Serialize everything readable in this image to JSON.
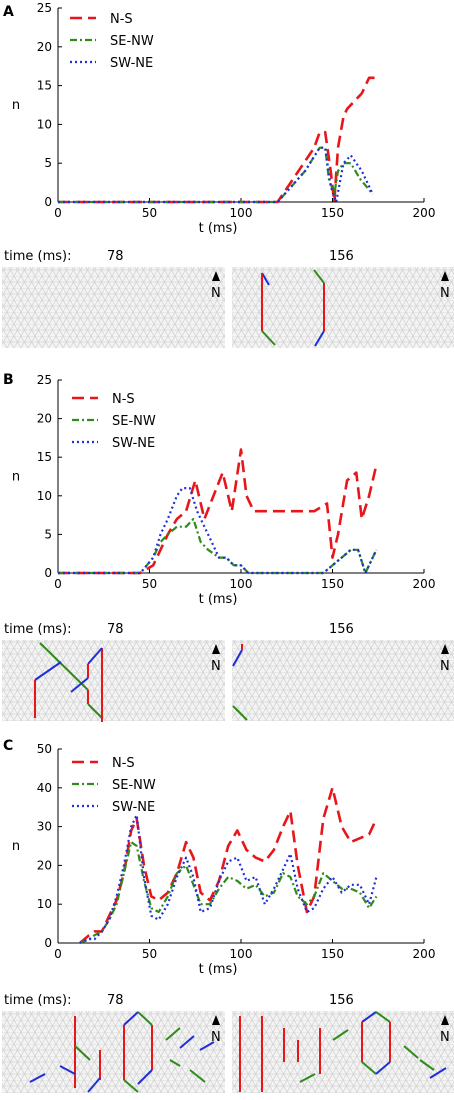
{
  "colors": {
    "ns": "#e8161b",
    "senw": "#2f8b1a",
    "swne": "#1f2fd8",
    "lattice": "#dadada",
    "lattice_bg": "#f2f2f2"
  },
  "legend": {
    "ns": "N-S",
    "senw": "SE-NW",
    "swne": "SW-NE"
  },
  "snapshot_labels": {
    "time": "time (ms):",
    "t1": "78",
    "t2": "156",
    "north": "N"
  },
  "chart_data": [
    {
      "panel": "A",
      "type": "line",
      "xlabel": "t (ms)",
      "ylabel": "n",
      "xlim": [
        0,
        200
      ],
      "ylim": [
        0,
        25
      ],
      "xticks": [
        0,
        50,
        100,
        150,
        200
      ],
      "yticks": [
        0,
        5,
        10,
        15,
        20,
        25
      ],
      "series": [
        {
          "name": "N-S",
          "x": [
            0,
            120,
            140,
            143,
            146,
            149,
            151,
            153,
            156,
            158,
            162,
            166,
            170,
            173
          ],
          "y": [
            0,
            0,
            7,
            9,
            9,
            4,
            0,
            7,
            11,
            12,
            13,
            14,
            16,
            16
          ]
        },
        {
          "name": "SE-NW",
          "x": [
            0,
            120,
            135,
            143,
            146,
            148,
            151,
            153,
            156,
            160,
            165,
            172
          ],
          "y": [
            0,
            0,
            4,
            7,
            7,
            3,
            1,
            4,
            5,
            5,
            3,
            1
          ]
        },
        {
          "name": "SW-NE",
          "x": [
            0,
            120,
            135,
            143,
            146,
            149,
            152,
            156,
            160,
            166,
            172
          ],
          "y": [
            0,
            0,
            4,
            7,
            7,
            2,
            0,
            5,
            6,
            4,
            1
          ]
        }
      ]
    },
    {
      "panel": "B",
      "type": "line",
      "xlabel": "t (ms)",
      "ylabel": "n",
      "xlim": [
        0,
        200
      ],
      "ylim": [
        0,
        25
      ],
      "xticks": [
        0,
        50,
        100,
        150,
        200
      ],
      "yticks": [
        0,
        5,
        10,
        15,
        20,
        25
      ],
      "series": [
        {
          "name": "N-S",
          "x": [
            0,
            45,
            52,
            56,
            60,
            65,
            70,
            75,
            80,
            85,
            90,
            95,
            100,
            103,
            107,
            110,
            120,
            130,
            140,
            147,
            150,
            153,
            158,
            163,
            166,
            170,
            174
          ],
          "y": [
            0,
            0,
            1,
            3,
            5,
            7,
            8,
            12,
            7,
            10,
            13,
            8,
            16,
            10,
            8,
            8,
            8,
            8,
            8,
            9,
            2,
            5,
            12,
            13,
            7,
            10,
            14
          ]
        },
        {
          "name": "SE-NW",
          "x": [
            0,
            45,
            52,
            56,
            60,
            65,
            70,
            74,
            78,
            82,
            88,
            92,
            96,
            100,
            104,
            108,
            145,
            150,
            155,
            160,
            164,
            168,
            174
          ],
          "y": [
            0,
            0,
            2,
            4,
            5,
            6,
            6,
            7,
            4,
            3,
            2,
            2,
            1,
            1,
            0,
            0,
            0,
            1,
            2,
            3,
            3,
            0,
            3
          ]
        },
        {
          "name": "SW-NE",
          "x": [
            0,
            45,
            52,
            56,
            60,
            65,
            68,
            72,
            76,
            80,
            84,
            88,
            92,
            96,
            100,
            104,
            145,
            150,
            155,
            160,
            164,
            168,
            174
          ],
          "y": [
            0,
            0,
            2,
            5,
            7,
            10,
            11,
            11,
            8,
            6,
            4,
            2,
            2,
            1,
            1,
            0,
            0,
            1,
            2,
            3,
            3,
            0,
            3
          ]
        }
      ]
    },
    {
      "panel": "C",
      "type": "line",
      "xlabel": "t (ms)",
      "ylabel": "n",
      "xlim": [
        0,
        200
      ],
      "ylim": [
        0,
        50
      ],
      "xticks": [
        0,
        50,
        100,
        150,
        200
      ],
      "yticks": [
        0,
        10,
        20,
        30,
        40,
        50
      ],
      "series": [
        {
          "name": "N-S",
          "x": [
            12,
            17,
            20,
            24,
            28,
            32,
            36,
            40,
            43,
            47,
            51,
            55,
            60,
            65,
            70,
            74,
            78,
            83,
            88,
            93,
            98,
            103,
            108,
            113,
            118,
            123,
            127,
            131,
            136,
            140,
            145,
            150,
            155,
            160,
            165,
            170,
            174
          ],
          "y": [
            0,
            2,
            3,
            3,
            7,
            11,
            18,
            29,
            32,
            20,
            12,
            11,
            13,
            18,
            26,
            22,
            13,
            11,
            16,
            25,
            29,
            24,
            22,
            21,
            24,
            30,
            34,
            20,
            8,
            12,
            32,
            40,
            30,
            26,
            27,
            28,
            32
          ]
        },
        {
          "name": "SE-NW",
          "x": [
            12,
            17,
            20,
            24,
            28,
            32,
            36,
            40,
            43,
            47,
            51,
            55,
            60,
            65,
            70,
            74,
            78,
            83,
            88,
            93,
            98,
            103,
            108,
            113,
            118,
            123,
            127,
            131,
            136,
            140,
            145,
            150,
            155,
            160,
            165,
            170,
            174
          ],
          "y": [
            0,
            1,
            2,
            3,
            6,
            10,
            18,
            26,
            25,
            16,
            9,
            8,
            12,
            18,
            20,
            15,
            10,
            10,
            14,
            17,
            16,
            14,
            15,
            12,
            13,
            18,
            17,
            12,
            10,
            12,
            18,
            16,
            14,
            14,
            13,
            9,
            12
          ]
        },
        {
          "name": "SW-NE",
          "x": [
            12,
            17,
            20,
            24,
            28,
            32,
            36,
            40,
            43,
            47,
            51,
            55,
            60,
            65,
            70,
            74,
            78,
            83,
            88,
            93,
            98,
            103,
            108,
            113,
            118,
            123,
            127,
            131,
            136,
            140,
            145,
            150,
            155,
            160,
            165,
            170,
            174
          ],
          "y": [
            0,
            1,
            1,
            3,
            6,
            12,
            20,
            30,
            33,
            17,
            7,
            6,
            10,
            17,
            22,
            17,
            8,
            9,
            16,
            21,
            22,
            16,
            17,
            10,
            14,
            19,
            23,
            14,
            8,
            9,
            14,
            17,
            13,
            15,
            15,
            10,
            17
          ]
        }
      ]
    }
  ]
}
